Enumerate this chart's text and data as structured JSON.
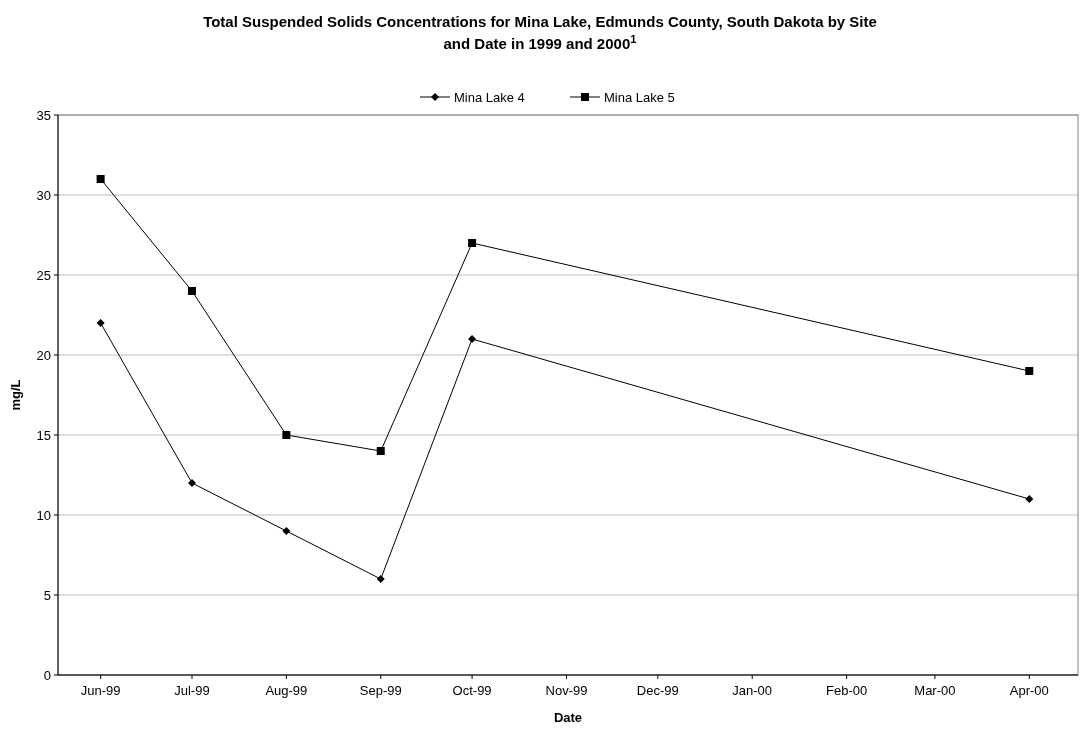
{
  "chart_data": {
    "type": "line",
    "title": "Total Suspended Solids Concentrations for Mina Lake, Edmunds County, South Dakota by Site and Date in 1999 and 2000$^{1}$",
    "xlabel": "Date",
    "ylabel": "mg/L",
    "x": [
      "1999-06-15",
      "1999-07-15",
      "1999-08-15",
      "1999-09-15",
      "1999-10-15",
      "2000-04-15"
    ],
    "xlim": [
      "1999-06-01",
      "2000-05-01"
    ],
    "xticks": [
      {
        "value": "1999-06-15",
        "label": "Jun-99"
      },
      {
        "value": "1999-07-15",
        "label": "Jul-99"
      },
      {
        "value": "1999-08-15",
        "label": "Aug-99"
      },
      {
        "value": "1999-09-15",
        "label": "Sep-99"
      },
      {
        "value": "1999-10-15",
        "label": "Oct-99"
      },
      {
        "value": "1999-11-15",
        "label": "Nov-99"
      },
      {
        "value": "1999-12-15",
        "label": "Dec-99"
      },
      {
        "value": "2000-01-15",
        "label": "Jan-00"
      },
      {
        "value": "2000-02-15",
        "label": "Feb-00"
      },
      {
        "value": "2000-03-15",
        "label": "Mar-00"
      },
      {
        "value": "2000-04-15",
        "label": "Apr-00"
      }
    ],
    "ylim": [
      0,
      35
    ],
    "yticks": [
      0,
      5,
      10,
      15,
      20,
      25,
      30,
      35
    ],
    "grid": "y",
    "legend": "top",
    "line_style": "solid",
    "series": [
      {
        "name": "Mina Lake 4",
        "color": "#000000",
        "marker": "diamond",
        "values": [
          22,
          12,
          9,
          6,
          21,
          11
        ]
      },
      {
        "name": "Mina Lake 5",
        "color": "#000000",
        "marker": "square",
        "values": [
          31,
          24,
          15,
          14,
          27,
          19
        ]
      }
    ]
  }
}
